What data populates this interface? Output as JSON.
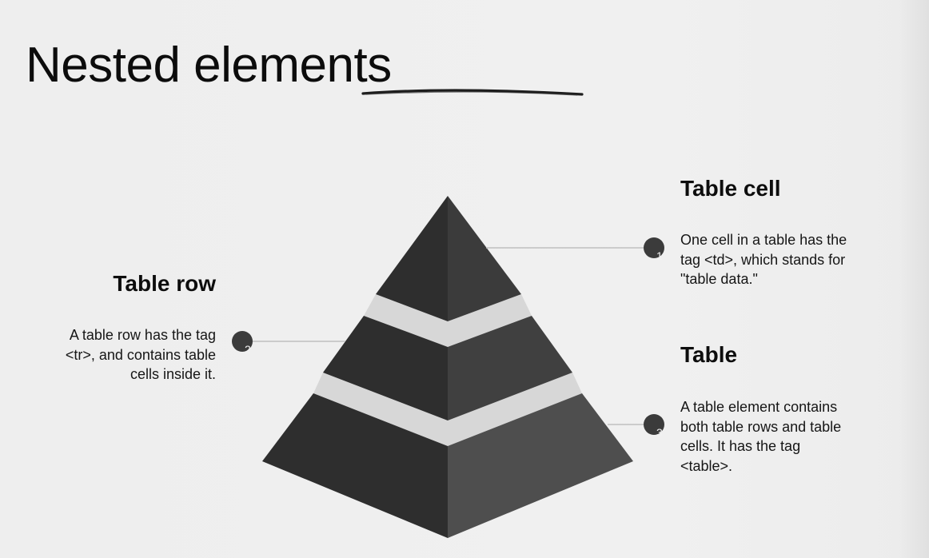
{
  "title": "Nested elements",
  "diagram": {
    "levels": [
      {
        "number": "1",
        "heading": "Table cell",
        "description": "One cell in a table has the tag  <td>, which stands for \"table data.\""
      },
      {
        "number": "2",
        "heading": "Table row",
        "description": "A table row has the tag <tr>, and contains table cells inside it."
      },
      {
        "number": "3",
        "heading": "Table",
        "description": "A table element contains both table rows and table cells. It has the tag <table>."
      }
    ]
  },
  "colors": {
    "background": "#efefef",
    "pyramid_dark": "#2e2e2e",
    "pyramid_medium": "#4a4a4a",
    "gap": "#d7d7d7",
    "connector": "#bfbfbf",
    "marker": "#3b3b3b"
  }
}
